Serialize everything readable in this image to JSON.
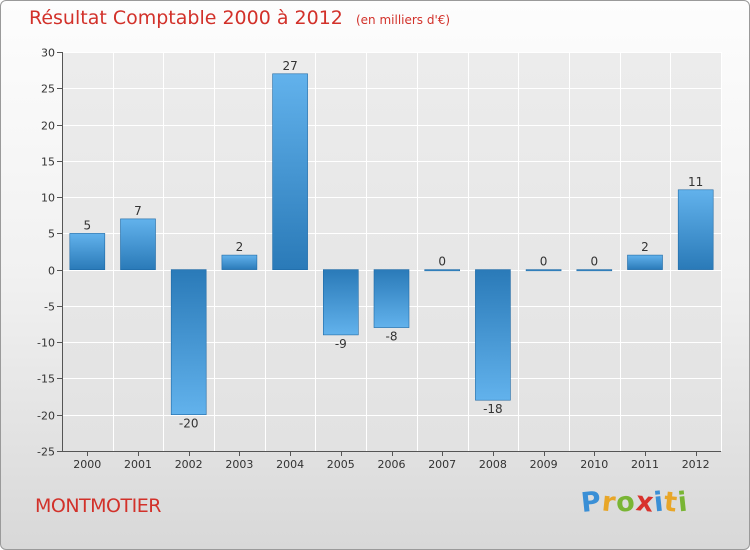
{
  "title": "Résultat Comptable 2000 à 2012",
  "unit": "(en milliers d'€)",
  "commune": "MONTMOTIER",
  "brand": {
    "letters": [
      "P",
      "r",
      "o",
      "x",
      "i",
      "t",
      "i"
    ],
    "colors": [
      "#3a8fd6",
      "#e8a628",
      "#79b534",
      "#d8322d",
      "#3a8fd6",
      "#e8a628",
      "#79b534"
    ]
  },
  "chart_data": {
    "type": "bar",
    "categories": [
      "2000",
      "2001",
      "2002",
      "2003",
      "2004",
      "2005",
      "2006",
      "2007",
      "2008",
      "2009",
      "2010",
      "2011",
      "2012"
    ],
    "values": [
      5,
      7,
      -20,
      2,
      27,
      -9,
      -8,
      0,
      -18,
      0,
      0,
      2,
      11
    ],
    "labels": [
      "5",
      "7",
      "-20",
      "2",
      "27",
      "-9",
      "-8",
      "0",
      "-18",
      "0",
      "0",
      "2",
      "11"
    ],
    "ylim": [
      -25,
      30
    ],
    "yticks": [
      30,
      25,
      20,
      15,
      10,
      5,
      0,
      -5,
      -10,
      -15,
      -20,
      -25
    ],
    "ytick_labels": [
      "30",
      "25",
      "20",
      "15",
      "10",
      "5",
      "0",
      "-5",
      "-10",
      "-15",
      "-20",
      "-25"
    ],
    "grid": true,
    "bar_color_dark": "#2a7ab8",
    "bar_color_light": "#62b2ec"
  }
}
